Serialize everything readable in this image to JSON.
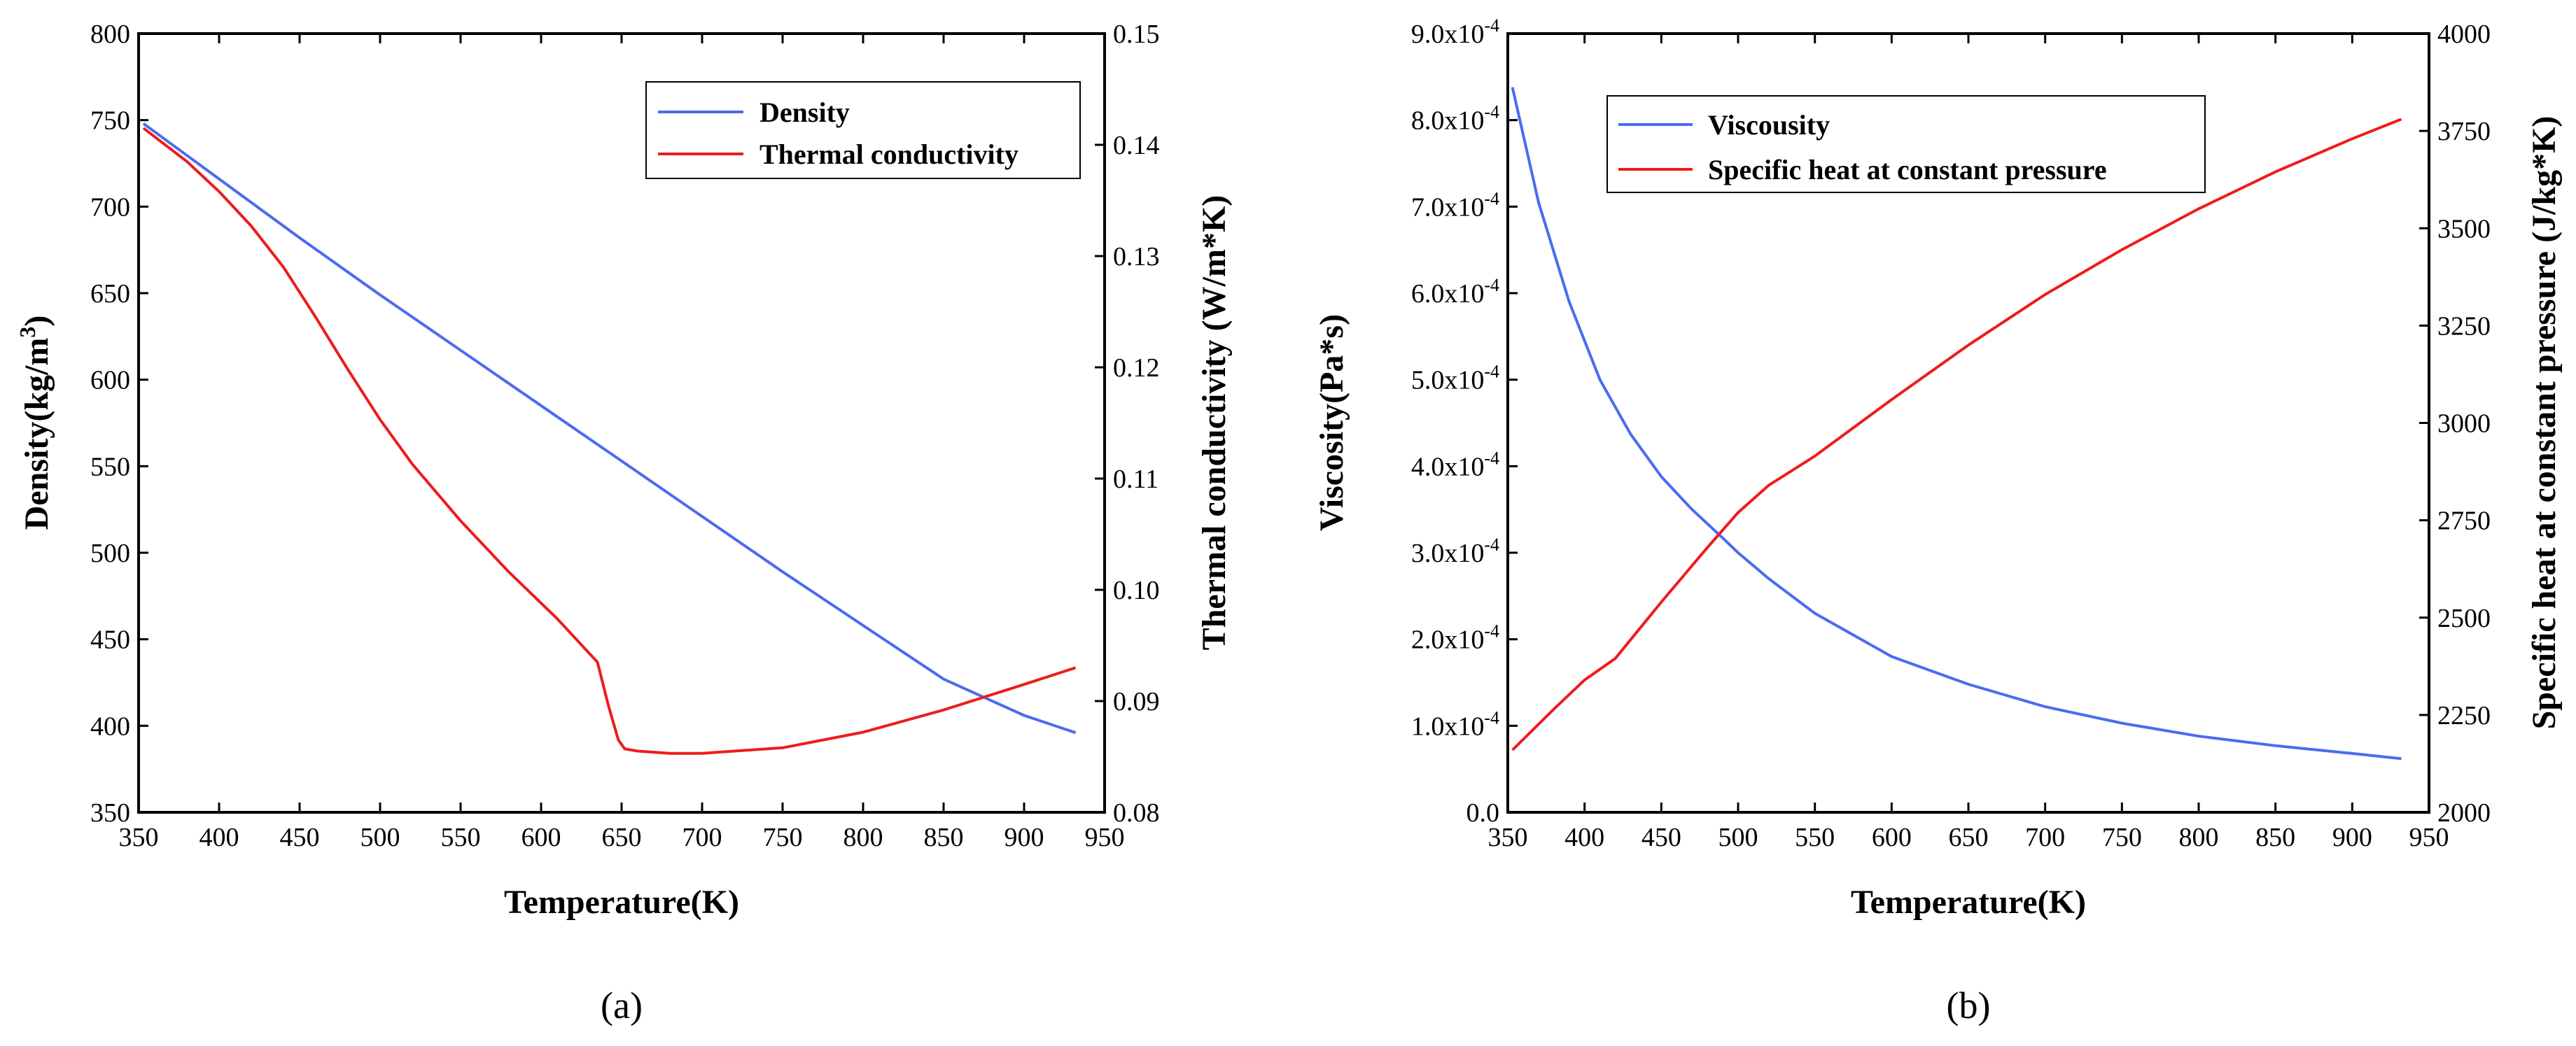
{
  "chart_data": [
    {
      "type": "line",
      "panel": "(a)",
      "xlabel": "Temperature(K)",
      "ylabel_left": "Density(kg/m3)",
      "ylabel_left_base": "Density(kg/m",
      "ylabel_left_sup": "3",
      "ylabel_left_end": ")",
      "ylabel_right": "Thermal conductivity (W/m*K)",
      "xlim": [
        350,
        950
      ],
      "xticks": [
        350,
        400,
        450,
        500,
        550,
        600,
        650,
        700,
        750,
        800,
        850,
        900,
        950
      ],
      "ylim_left": [
        350,
        800
      ],
      "yticks_left": [
        350,
        400,
        450,
        500,
        550,
        600,
        650,
        700,
        750,
        800
      ],
      "ylim_right": [
        0.08,
        0.15
      ],
      "yticks_right": [
        "0.08",
        "0.09",
        "0.10",
        "0.11",
        "0.12",
        "0.13",
        "0.14",
        "0.15"
      ],
      "legend_position": "top-right",
      "series": [
        {
          "name": "Density",
          "color": "#4a6cf0",
          "axis": "left",
          "x": [
            353,
            400,
            450,
            500,
            550,
            600,
            650,
            700,
            750,
            800,
            850,
            900,
            932
          ],
          "y": [
            748,
            716,
            682,
            649,
            617,
            585,
            553,
            521,
            489,
            458,
            427,
            406,
            396
          ]
        },
        {
          "name": "Thermal conductivity",
          "color": "#ee1c1c",
          "axis": "right",
          "x": [
            353,
            380,
            400,
            420,
            440,
            460,
            480,
            500,
            520,
            550,
            580,
            610,
            635,
            642,
            648,
            652,
            660,
            680,
            700,
            750,
            800,
            850,
            900,
            932
          ],
          "y": [
            0.1415,
            0.1385,
            0.1358,
            0.1327,
            0.129,
            0.1245,
            0.1198,
            0.1153,
            0.1113,
            0.1062,
            0.1016,
            0.0974,
            0.0935,
            0.0895,
            0.0865,
            0.0857,
            0.0855,
            0.0853,
            0.0853,
            0.0858,
            0.0872,
            0.0892,
            0.0915,
            0.093
          ]
        }
      ]
    },
    {
      "type": "line",
      "panel": "(b)",
      "xlabel": "Temperature(K)",
      "ylabel_left": "Viscosity(Pa*s)",
      "ylabel_right": "Specific heat at constant pressure (J/kg*K)",
      "xlim": [
        350,
        950
      ],
      "xticks": [
        350,
        400,
        450,
        500,
        550,
        600,
        650,
        700,
        750,
        800,
        850,
        900,
        950
      ],
      "ylim_left": [
        0,
        0.0009
      ],
      "yticks_left_mantissa": [
        "0.0",
        "1.0x10",
        "2.0x10",
        "3.0x10",
        "4.0x10",
        "5.0x10",
        "6.0x10",
        "7.0x10",
        "8.0x10",
        "9.0x10"
      ],
      "yticks_left_exp": "-4",
      "yticks_left_values": [
        0,
        0.0001,
        0.0002,
        0.0003,
        0.0004,
        0.0005,
        0.0006,
        0.0007,
        0.0008,
        0.0009
      ],
      "ylim_right": [
        2000,
        4000
      ],
      "yticks_right": [
        2000,
        2250,
        2500,
        2750,
        3000,
        3250,
        3500,
        3750,
        4000
      ],
      "legend_position": "top-left",
      "series": [
        {
          "name": "Viscousity",
          "color": "#4a6cf0",
          "axis": "left",
          "x": [
            353,
            370,
            390,
            410,
            430,
            450,
            470,
            490,
            500,
            520,
            550,
            600,
            650,
            700,
            750,
            800,
            850,
            900,
            932
          ],
          "y": [
            0.000838,
            0.000705,
            0.00059,
            0.0005,
            0.000437,
            0.000388,
            0.00035,
            0.000317,
            0.0003,
            0.00027,
            0.00023,
            0.00018,
            0.000148,
            0.000122,
            0.000103,
            8.8e-05,
            7.7e-05,
            6.8e-05,
            6.2e-05
          ]
        },
        {
          "name": "Specific heat at constant pressure",
          "color": "#ee1c1c",
          "axis": "right",
          "x": [
            353,
            380,
            400,
            420,
            450,
            480,
            500,
            520,
            550,
            600,
            650,
            700,
            750,
            800,
            850,
            900,
            932
          ],
          "y": [
            2160,
            2265,
            2340,
            2395,
            2540,
            2680,
            2770,
            2840,
            2915,
            3060,
            3200,
            3330,
            3445,
            3550,
            3645,
            3730,
            3780
          ]
        }
      ]
    }
  ]
}
